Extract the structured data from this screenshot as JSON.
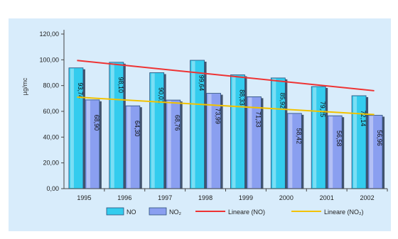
{
  "chart_data": {
    "type": "bar",
    "title": "",
    "xlabel": "",
    "ylabel": "µg/mc",
    "ylim": [
      0,
      120
    ],
    "yticks": [
      "0,00",
      "20,00",
      "40,00",
      "60,00",
      "80,00",
      "100,00",
      "120,00"
    ],
    "grid": false,
    "legend_position": "bottom",
    "categories": [
      "1995",
      "1996",
      "1997",
      "1998",
      "1999",
      "2000",
      "2001",
      "2002"
    ],
    "series": [
      {
        "name": "NO",
        "values": [
          93.74,
          98.1,
          90.01,
          99.64,
          88.33,
          85.92,
          79.25,
          72.14
        ],
        "labels": [
          "93,74",
          "98,10",
          "90,01",
          "99,64",
          "88,33",
          "85,92",
          "79,25",
          "72,14"
        ],
        "color": "#33ccee"
      },
      {
        "name": "NO₂",
        "values": [
          68.9,
          64.3,
          68.76,
          73.99,
          71.33,
          58.42,
          56.58,
          56.96
        ],
        "labels": [
          "68,90",
          "64,30",
          "68,76",
          "73,99",
          "71,33",
          "58,42",
          "56,58",
          "56,96"
        ],
        "color": "#8a9ff0"
      }
    ],
    "trendlines": [
      {
        "name": "Lineare (NO)",
        "from": 99.5,
        "to": 76.0,
        "color": "#ee3333"
      },
      {
        "name": "Lineare (NO₂)",
        "from": 71.0,
        "to": 57.5,
        "color": "#f2c200"
      }
    ],
    "colors": {
      "background": "#d8ecfb",
      "plot_background": "#d8ecfb",
      "axis": "#444444"
    }
  }
}
